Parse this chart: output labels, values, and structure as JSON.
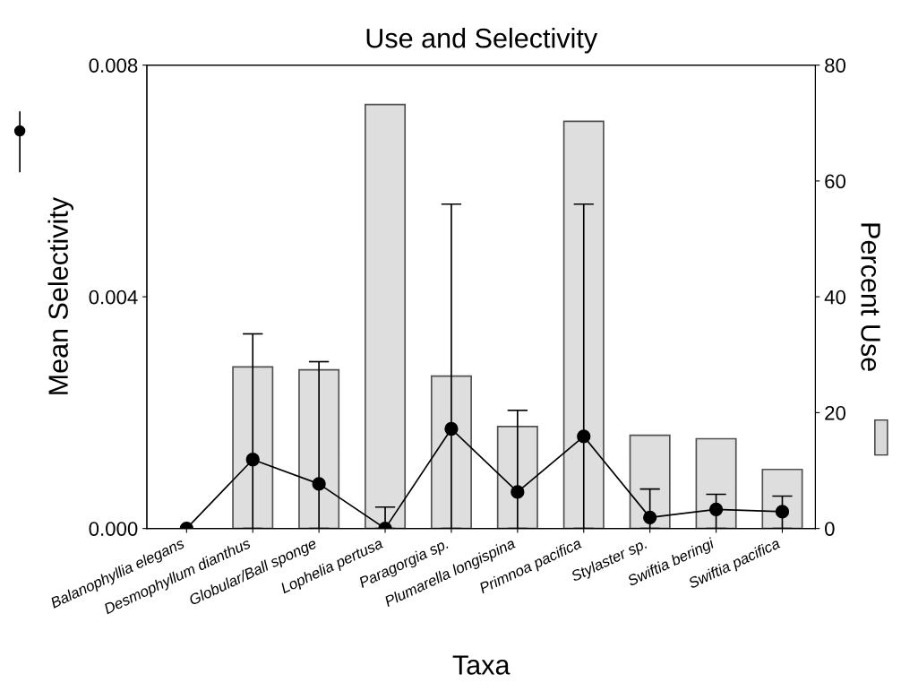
{
  "chart_data": {
    "type": "bar",
    "title": "Use and Selectivity",
    "xlabel": "Taxa",
    "ylabel": "Mean Selectivity",
    "y2label": "Percent Use",
    "categories": [
      "Balanophyllia elegans",
      "Desmophyllum dianthus",
      "Globular/Ball sponge",
      "Lophelia pertusa",
      "Paragorgia sp.",
      "Plumarella longispina",
      "Primnoa pacifica",
      "Stylaster sp.",
      "Swiftia beringi",
      "Swiftia pacifica"
    ],
    "series": [
      {
        "axis": "y2",
        "color": "#d9d9d9",
        "values": [
          null,
          27.9,
          27.4,
          73.2,
          26.3,
          17.6,
          70.3,
          16.1,
          15.5,
          10.2
        ]
      },
      {
        "type": "line",
        "axis": "y",
        "color": "#000000",
        "marker": "circle",
        "values": [
          0,
          0.00119,
          0.00077,
          0,
          0.00172,
          0.00063,
          0.00159,
          0.00019,
          0.00033,
          0.00029
        ],
        "errors": [
          null,
          [
            0,
            0.00336
          ],
          [
            0,
            0.00288
          ],
          [
            0,
            0.00037
          ],
          [
            0,
            0.0056
          ],
          [
            0,
            0.00204
          ],
          [
            0,
            0.0056
          ],
          [
            0,
            0.00068
          ],
          [
            0,
            0.00059
          ],
          [
            0,
            0.00056
          ]
        ]
      }
    ],
    "ylim": [
      0,
      0.008
    ],
    "yticks": [
      {
        "value": 0,
        "label": "0.000"
      },
      {
        "value": 0.004,
        "label": "0.004"
      },
      {
        "value": 0.008,
        "label": "0.008"
      }
    ],
    "y2lim": [
      0,
      80
    ],
    "y2ticks": [
      0,
      20,
      40,
      60,
      80
    ],
    "grid": false,
    "legend": false
  }
}
